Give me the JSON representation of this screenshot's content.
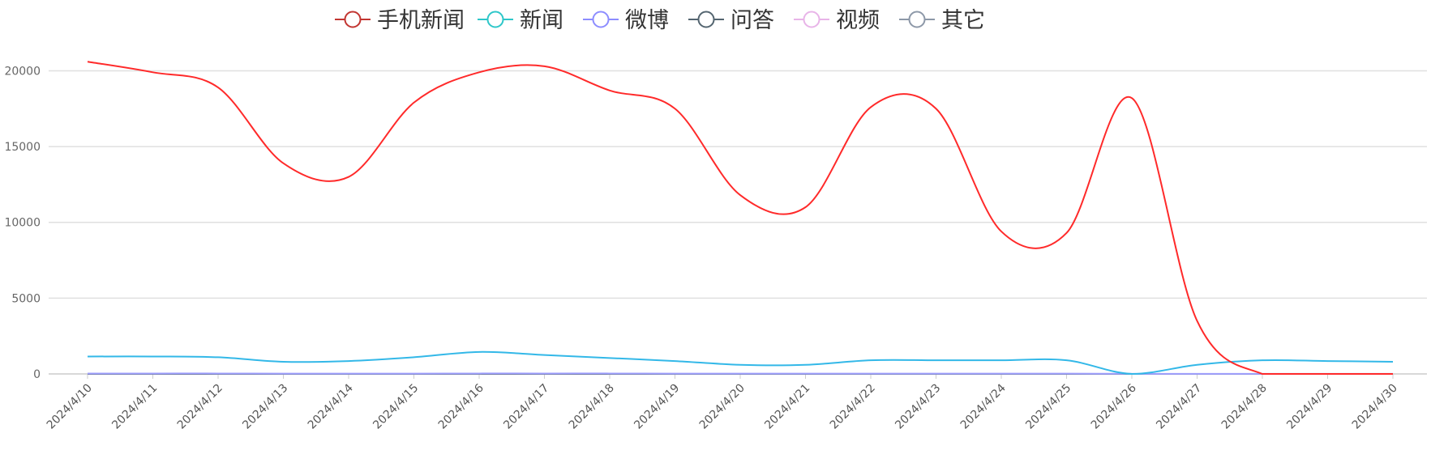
{
  "chart_data": {
    "type": "line",
    "title": "",
    "xlabel": "",
    "ylabel": "",
    "ylim": [
      0,
      22000
    ],
    "y_ticks": [
      0,
      5000,
      10000,
      15000,
      20000
    ],
    "grid": true,
    "legend_position": "top-center",
    "smooth": true,
    "categories": [
      "2024/4/10",
      "2024/4/11",
      "2024/4/12",
      "2024/4/13",
      "2024/4/14",
      "2024/4/15",
      "2024/4/16",
      "2024/4/17",
      "2024/4/18",
      "2024/4/19",
      "2024/4/20",
      "2024/4/21",
      "2024/4/22",
      "2024/4/23",
      "2024/4/24",
      "2024/4/25",
      "2024/4/26",
      "2024/4/27",
      "2024/4/28",
      "2024/4/29",
      "2024/4/30"
    ],
    "series": [
      {
        "name": "手机新闻",
        "color": "#ff2a2a",
        "legend_color": "#c23531",
        "values": [
          20600,
          19900,
          18900,
          13900,
          13000,
          17900,
          19900,
          20300,
          18700,
          17500,
          11800,
          11000,
          17600,
          17500,
          9400,
          9300,
          18200,
          3500,
          0,
          0,
          0
        ]
      },
      {
        "name": "新闻",
        "color": "#33b8e8",
        "legend_color": "#2ec7c9",
        "values": [
          1150,
          1150,
          1100,
          800,
          850,
          1100,
          1450,
          1250,
          1050,
          850,
          600,
          600,
          900,
          900,
          900,
          900,
          0,
          600,
          900,
          850,
          800
        ]
      },
      {
        "name": "微博",
        "color": "#a0a0ff",
        "legend_color": "#8d8dff",
        "values": [
          30,
          30,
          30,
          20,
          20,
          20,
          30,
          30,
          30,
          20,
          20,
          20,
          20,
          20,
          20,
          20,
          10,
          10,
          10,
          10,
          10
        ]
      },
      {
        "name": "问答",
        "color": "#5b6b7a",
        "legend_color": "#546570",
        "values": [
          0,
          0,
          0,
          0,
          0,
          0,
          0,
          0,
          0,
          0,
          0,
          0,
          0,
          0,
          0,
          0,
          0,
          0,
          0,
          0,
          0
        ]
      },
      {
        "name": "视频",
        "color": "#e8b4e8",
        "legend_color": "#e8b4e8",
        "values": [
          10,
          10,
          10,
          5,
          5,
          5,
          10,
          10,
          10,
          5,
          5,
          5,
          5,
          5,
          5,
          5,
          0,
          0,
          0,
          0,
          0
        ]
      },
      {
        "name": "其它",
        "color": "#8d98a8",
        "legend_color": "#8d98a8",
        "values": [
          0,
          0,
          0,
          0,
          0,
          0,
          0,
          0,
          0,
          0,
          0,
          0,
          0,
          0,
          0,
          0,
          0,
          0,
          0,
          0,
          0
        ]
      }
    ]
  }
}
